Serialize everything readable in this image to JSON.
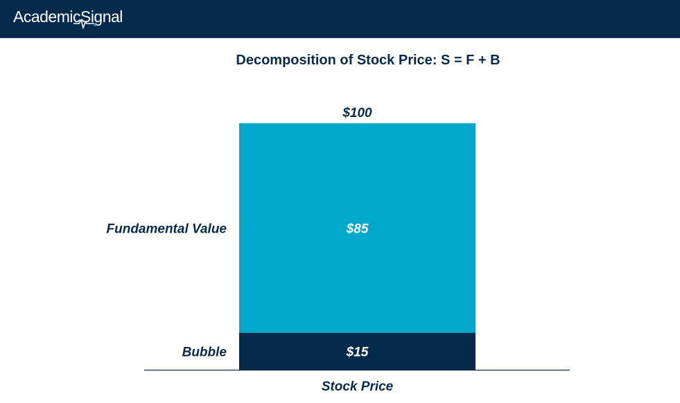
{
  "header": {
    "brand": "AcademicSignal",
    "logo_icon": "heartbeat-wave-icon"
  },
  "colors": {
    "header_bg": "#062a4b",
    "fundamental": "#00a9cc",
    "bubble": "#062a4b",
    "text_dark": "#0b2a4a"
  },
  "chart_data": {
    "type": "bar",
    "title": "Decomposition of Stock Price: S = F + B",
    "categories": [
      "Stock Price"
    ],
    "stacked": true,
    "total_label": "$100",
    "total": 100,
    "series": [
      {
        "name": "Bubble",
        "values": [
          15
        ],
        "label": "$15"
      },
      {
        "name": "Fundamental Value",
        "values": [
          85
        ],
        "label": "$85"
      }
    ],
    "ylim": [
      0,
      100
    ],
    "grid": false
  }
}
